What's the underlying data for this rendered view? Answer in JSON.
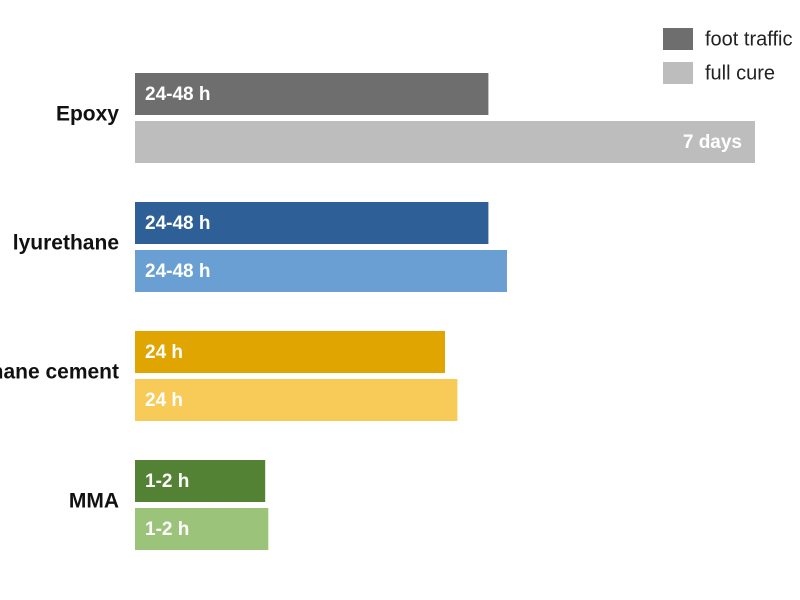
{
  "chart_data": {
    "type": "bar",
    "orientation": "horizontal",
    "categories": [
      "Epoxy",
      "lyurethane",
      "thane cement",
      "MMA"
    ],
    "xlim": [
      0,
      100
    ],
    "legend": "top-right",
    "series": [
      {
        "name": "foot traffic",
        "color": "#6e6e6e",
        "colors": [
          "#6e6e6e",
          "#2e5f96",
          "#e0a500",
          "#548235"
        ],
        "values": [
          57,
          57,
          50,
          21
        ],
        "value_labels": [
          "24-48 h",
          "24-48 h",
          "24 h",
          "1-2 h"
        ]
      },
      {
        "name": "full cure",
        "color": "#bdbdbd",
        "colors": [
          "#bdbdbd",
          "#6a9fd4",
          "#f8ca58",
          "#9bc47a"
        ],
        "values": [
          100,
          60,
          52,
          21.5
        ],
        "value_labels": [
          "7 days",
          "24-48 h",
          "24 h",
          "1-2 h"
        ]
      }
    ]
  }
}
